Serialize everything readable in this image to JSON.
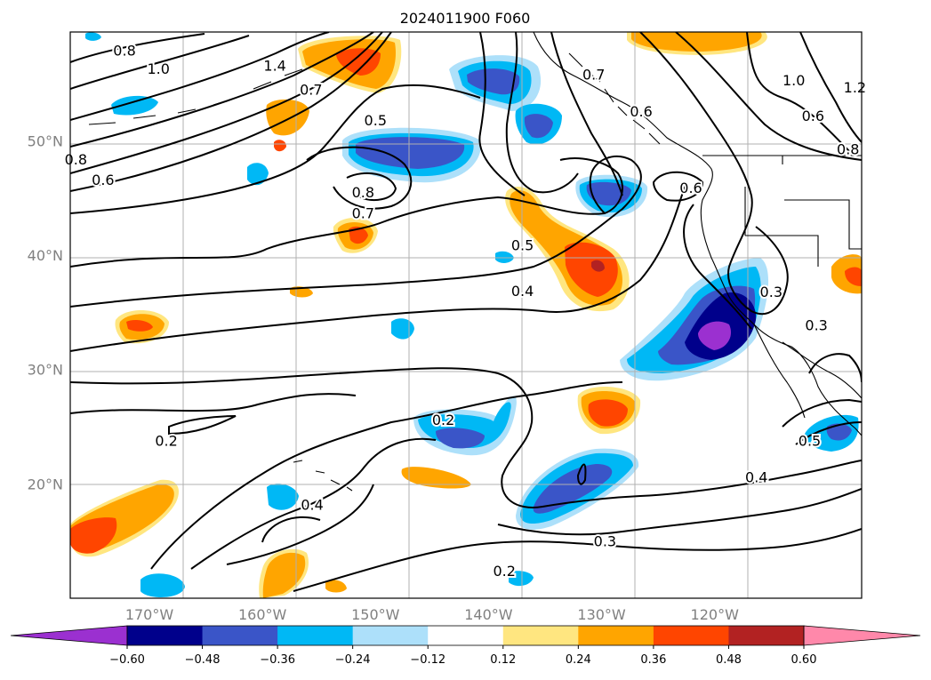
{
  "title": "2024011900 F060",
  "lat_labels": [
    {
      "text": "50°N",
      "lat": 50
    },
    {
      "text": "40°N",
      "lat": 40
    },
    {
      "text": "30°N",
      "lat": 30
    },
    {
      "text": "20°N",
      "lat": 20
    }
  ],
  "lon_labels": [
    {
      "text": "170°W",
      "lon": -170
    },
    {
      "text": "160°W",
      "lon": -160
    },
    {
      "text": "150°W",
      "lon": -150
    },
    {
      "text": "140°W",
      "lon": -140
    },
    {
      "text": "130°W",
      "lon": -130
    },
    {
      "text": "120°W",
      "lon": -120
    }
  ],
  "map_extent": {
    "lon_min": -177,
    "lon_max": -107,
    "lat_min": 10,
    "lat_max": 59.5
  },
  "colorbar": {
    "ticks": [
      "−0.60",
      "−0.48",
      "−0.36",
      "−0.24",
      "−0.12",
      "0.12",
      "0.24",
      "0.36",
      "0.48",
      "0.60"
    ],
    "colors": [
      "#9b30d0",
      "#00008b",
      "#3a55c8",
      "#00b8f5",
      "#ade0fa",
      "#ffffff",
      "#ffe680",
      "#ffa500",
      "#ff4500",
      "#b22222",
      "#ff88aa"
    ]
  },
  "contour_labels": [
    {
      "text": "0.8",
      "lon": -172.2,
      "lat": 57.9
    },
    {
      "text": "1.0",
      "lon": -169.2,
      "lat": 56.3
    },
    {
      "text": "1.4",
      "lon": -158.9,
      "lat": 56.6
    },
    {
      "text": "0.7",
      "lon": -155.7,
      "lat": 54.5
    },
    {
      "text": "0.5",
      "lon": -150.0,
      "lat": 51.8
    },
    {
      "text": "0.8",
      "lon": -176.5,
      "lat": 48.4
    },
    {
      "text": "0.6",
      "lon": -174.1,
      "lat": 46.6
    },
    {
      "text": "0.8",
      "lon": -151.1,
      "lat": 45.5
    },
    {
      "text": "0.7",
      "lon": -151.1,
      "lat": 43.7
    },
    {
      "text": "0.5",
      "lon": -137.0,
      "lat": 40.9
    },
    {
      "text": "0.4",
      "lon": -137.0,
      "lat": 36.9
    },
    {
      "text": "0.7",
      "lon": -130.7,
      "lat": 55.8
    },
    {
      "text": "0.6",
      "lon": -126.5,
      "lat": 52.6
    },
    {
      "text": "1.0",
      "lon": -113.0,
      "lat": 55.3
    },
    {
      "text": "0.6",
      "lon": -111.3,
      "lat": 52.2
    },
    {
      "text": "1.2",
      "lon": -107.6,
      "lat": 54.7
    },
    {
      "text": "0.8",
      "lon": -108.2,
      "lat": 49.3
    },
    {
      "text": "0.6",
      "lon": -122.1,
      "lat": 45.9
    },
    {
      "text": "0.3",
      "lon": -115.0,
      "lat": 36.8
    },
    {
      "text": "0.3",
      "lon": -111.0,
      "lat": 33.9
    },
    {
      "text": "0.2",
      "lon": -144.0,
      "lat": 25.6
    },
    {
      "text": "0.2",
      "lon": -168.5,
      "lat": 23.8
    },
    {
      "text": "0.4",
      "lon": -155.6,
      "lat": 18.2
    },
    {
      "text": "0.5",
      "lon": -111.6,
      "lat": 23.8
    },
    {
      "text": "0.4",
      "lon": -116.3,
      "lat": 20.6
    },
    {
      "text": "0.3",
      "lon": -129.7,
      "lat": 15.0
    },
    {
      "text": "0.2",
      "lon": -138.6,
      "lat": 12.4
    }
  ]
}
